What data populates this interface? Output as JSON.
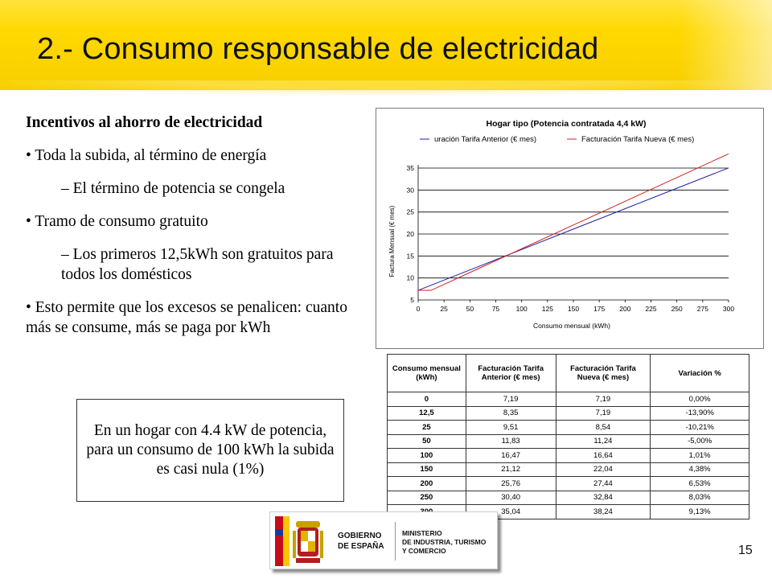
{
  "slide": {
    "title": "2.- Consumo responsable de electricidad",
    "page_number": "15",
    "accent_color": "#ffd800"
  },
  "content": {
    "heading": "Incentivos al ahorro de electricidad",
    "bullet1": "•  Toda la subida, al término de energía",
    "sub1": "– El término de potencia se congela",
    "bullet2": "• Tramo de consumo gratuito",
    "sub2": "– Los primeros 12,5kWh son gratuitos para todos los domésticos",
    "bullet3": "• Esto permite que los excesos se penalicen: cuanto más se consume, más se paga por kWh"
  },
  "note": {
    "text": "En un hogar con 4.4 kW de potencia, para un consumo de 100 kWh la subida es casi nula (1%)"
  },
  "chart_data": {
    "type": "line",
    "title": "Hogar tipo (Potencia contratada 4,4 kW)",
    "xlabel": "Consumo mensual (kWh)",
    "ylabel": "Factura Mensual (€ mes)",
    "x": [
      0,
      12.5,
      25,
      50,
      100,
      150,
      200,
      250,
      300
    ],
    "series": [
      {
        "name": "Facturación Tarifa Anterior (€ mes)",
        "legend_text": "uración Tarifa Anterior (€ mes)",
        "color": "#1f1fa8",
        "values": [
          7.19,
          8.35,
          9.51,
          11.83,
          16.47,
          21.12,
          25.76,
          30.4,
          35.04
        ]
      },
      {
        "name": "Facturación Tarifa Nueva (€ mes)",
        "legend_text": "Facturación Tarifa Nueva (€ mes)",
        "color": "#d42020",
        "values": [
          7.19,
          7.19,
          8.54,
          11.24,
          16.64,
          22.04,
          27.44,
          32.84,
          38.24
        ]
      }
    ],
    "xlim": [
      0,
      300
    ],
    "ylim": [
      5,
      35
    ],
    "xticks": [
      "0",
      "25",
      "50",
      "75",
      "100",
      "125",
      "150",
      "175",
      "200",
      "225",
      "250",
      "275",
      "300"
    ],
    "yticks": [
      "5",
      "10",
      "15",
      "20",
      "25",
      "30",
      "35"
    ],
    "grid": true,
    "legend_position": "top"
  },
  "table": {
    "headers": [
      "Consumo mensual (kWh)",
      "Facturación Tarifa Anterior (€ mes)",
      "Facturación Tarifa Nueva (€ mes)",
      "Variación %"
    ],
    "rows": [
      [
        "0",
        "7,19",
        "7,19",
        "0,00%"
      ],
      [
        "12,5",
        "8,35",
        "7,19",
        "-13,90%"
      ],
      [
        "25",
        "9,51",
        "8,54",
        "-10,21%"
      ],
      [
        "50",
        "11,83",
        "11,24",
        "-5,00%"
      ],
      [
        "100",
        "16,47",
        "16,64",
        "1,01%"
      ],
      [
        "150",
        "21,12",
        "22,04",
        "4,38%"
      ],
      [
        "200",
        "25,76",
        "27,44",
        "6,53%"
      ],
      [
        "250",
        "30,40",
        "32,84",
        "8,03%"
      ],
      [
        "300",
        "35,04",
        "38,24",
        "9,13%"
      ]
    ]
  },
  "logo": {
    "left_line1": "GOBIERNO",
    "left_line2": "DE ESPAÑA",
    "right_line1": "MINISTERIO",
    "right_line2": "DE INDUSTRIA, TURISMO",
    "right_line3": "Y COMERCIO",
    "flag_red": "#c60b1e",
    "flag_yellow": "#ffc400"
  }
}
